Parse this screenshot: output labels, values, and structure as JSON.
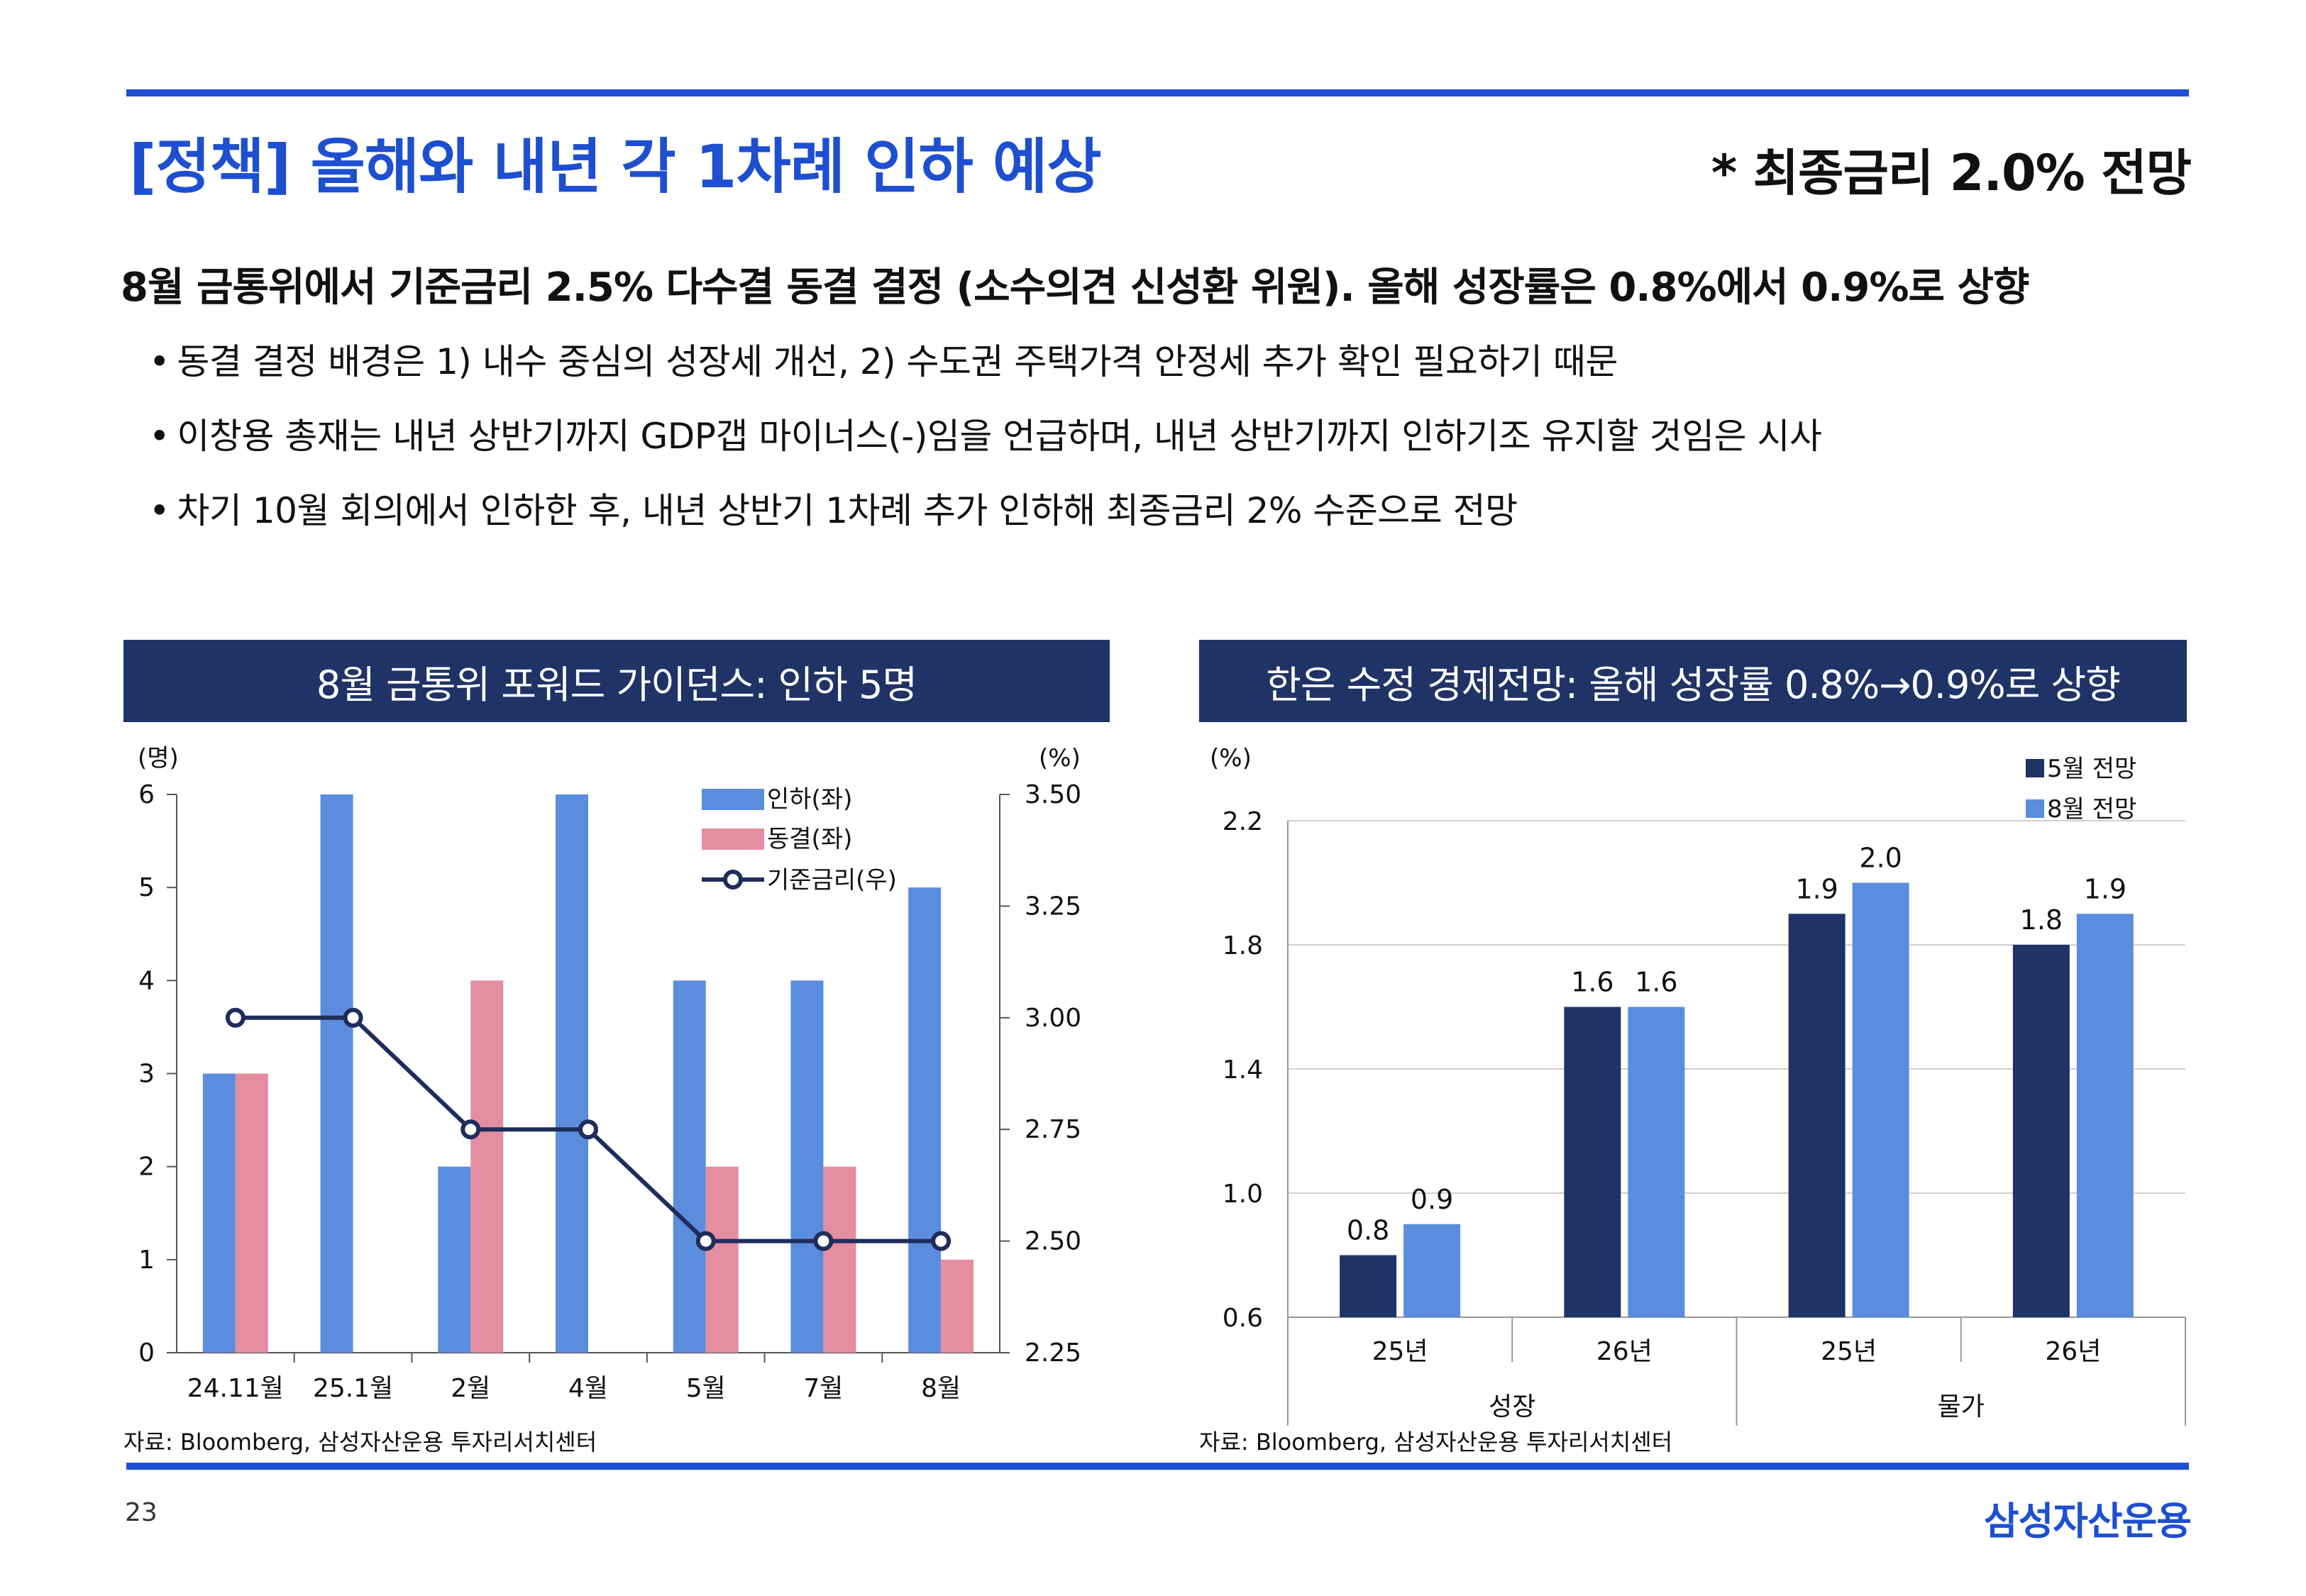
{
  "header": {
    "title": "[정책] 올해와 내년 각 1차례 인하 예상",
    "note": "* 최종금리 2.0% 전망"
  },
  "summary": {
    "headline": "8월 금통위에서 기준금리 2.5% 다수결 동결 결정 (소수의견 신성환 위원). 올해 성장률은 0.8%에서 0.9%로 상향",
    "bullets": [
      "동결 결정 배경은 1) 내수 중심의 성장세 개선, 2) 수도권 주택가격 안정세 추가 확인 필요하기 때문",
      "이창용 총재는 내년 상반기까지 GDP갭 마이너스(-)임을 언급하며, 내년 상반기까지 인하기조 유지할 것임은 시사",
      "차기 10월 회의에서 인하한 후, 내년 상반기 1차례 추가 인하해 최종금리 2% 수준으로 전망"
    ]
  },
  "left_panel": {
    "title": "8월 금통위 포워드 가이던스: 인하 5명",
    "source": "자료: Bloomberg, 삼성자산운용 투자리서치센터"
  },
  "right_panel": {
    "title": "한은 수정 경제전망: 올해 성장률 0.8%→0.9%로 상향",
    "source": "자료: Bloomberg, 삼성자산운용 투자리서치센터"
  },
  "footer": {
    "page_number": "23",
    "brand": "삼성자산운용"
  },
  "colors": {
    "accent_blue": "#1f4fd6",
    "panel_navy": "#1f3366",
    "bar_blue": "#5b8ddf",
    "bar_pink": "#e58da1",
    "line_navy": "#1f2d5c",
    "bar_dark_navy": "#1f3366",
    "bar_light_blue": "#5b8ddf"
  },
  "chart_data": [
    {
      "type": "bar",
      "categories": [
        "24.11월",
        "25.1월",
        "2월",
        "4월",
        "5월",
        "7월",
        "8월"
      ],
      "left_axis": {
        "label": "(명)",
        "ylim": [
          0,
          6
        ],
        "ticks": [
          "0",
          "1",
          "2",
          "3",
          "4",
          "5",
          "6"
        ]
      },
      "right_axis": {
        "label": "(%)",
        "ylim": [
          2.25,
          3.5
        ],
        "ticks": [
          "2.25",
          "2.50",
          "2.75",
          "3.00",
          "3.25",
          "3.50"
        ]
      },
      "series": [
        {
          "name": "인하(좌)",
          "type": "bar",
          "axis": "left",
          "values": [
            3,
            6,
            2,
            6,
            4,
            4,
            5
          ]
        },
        {
          "name": "동결(좌)",
          "type": "bar",
          "axis": "left",
          "values": [
            3,
            0,
            4,
            0,
            2,
            2,
            1
          ]
        },
        {
          "name": "기준금리(우)",
          "type": "line",
          "axis": "right",
          "values": [
            3.0,
            3.0,
            2.75,
            2.75,
            2.5,
            2.5,
            2.5
          ]
        }
      ],
      "legend_position": "top-right",
      "grid": false
    },
    {
      "type": "bar",
      "y_label": "(%)",
      "ylim": [
        0.6,
        2.2
      ],
      "ticks": [
        "0.6",
        "1.0",
        "1.4",
        "1.8",
        "2.2"
      ],
      "categories": [
        "25년",
        "26년",
        "25년",
        "26년"
      ],
      "groups": [
        {
          "label": "성장",
          "categories": [
            "25년",
            "26년"
          ]
        },
        {
          "label": "물가",
          "categories": [
            "25년",
            "26년"
          ]
        }
      ],
      "series": [
        {
          "name": "5월 전망",
          "values": [
            0.8,
            1.6,
            1.9,
            1.8
          ],
          "labels": [
            "0.8",
            "1.6",
            "1.9",
            "1.8"
          ]
        },
        {
          "name": "8월 전망",
          "values": [
            0.9,
            1.6,
            2.0,
            1.9
          ],
          "labels": [
            "0.9",
            "1.6",
            "2.0",
            "1.9"
          ]
        }
      ],
      "legend_position": "top-right",
      "grid": true
    }
  ]
}
